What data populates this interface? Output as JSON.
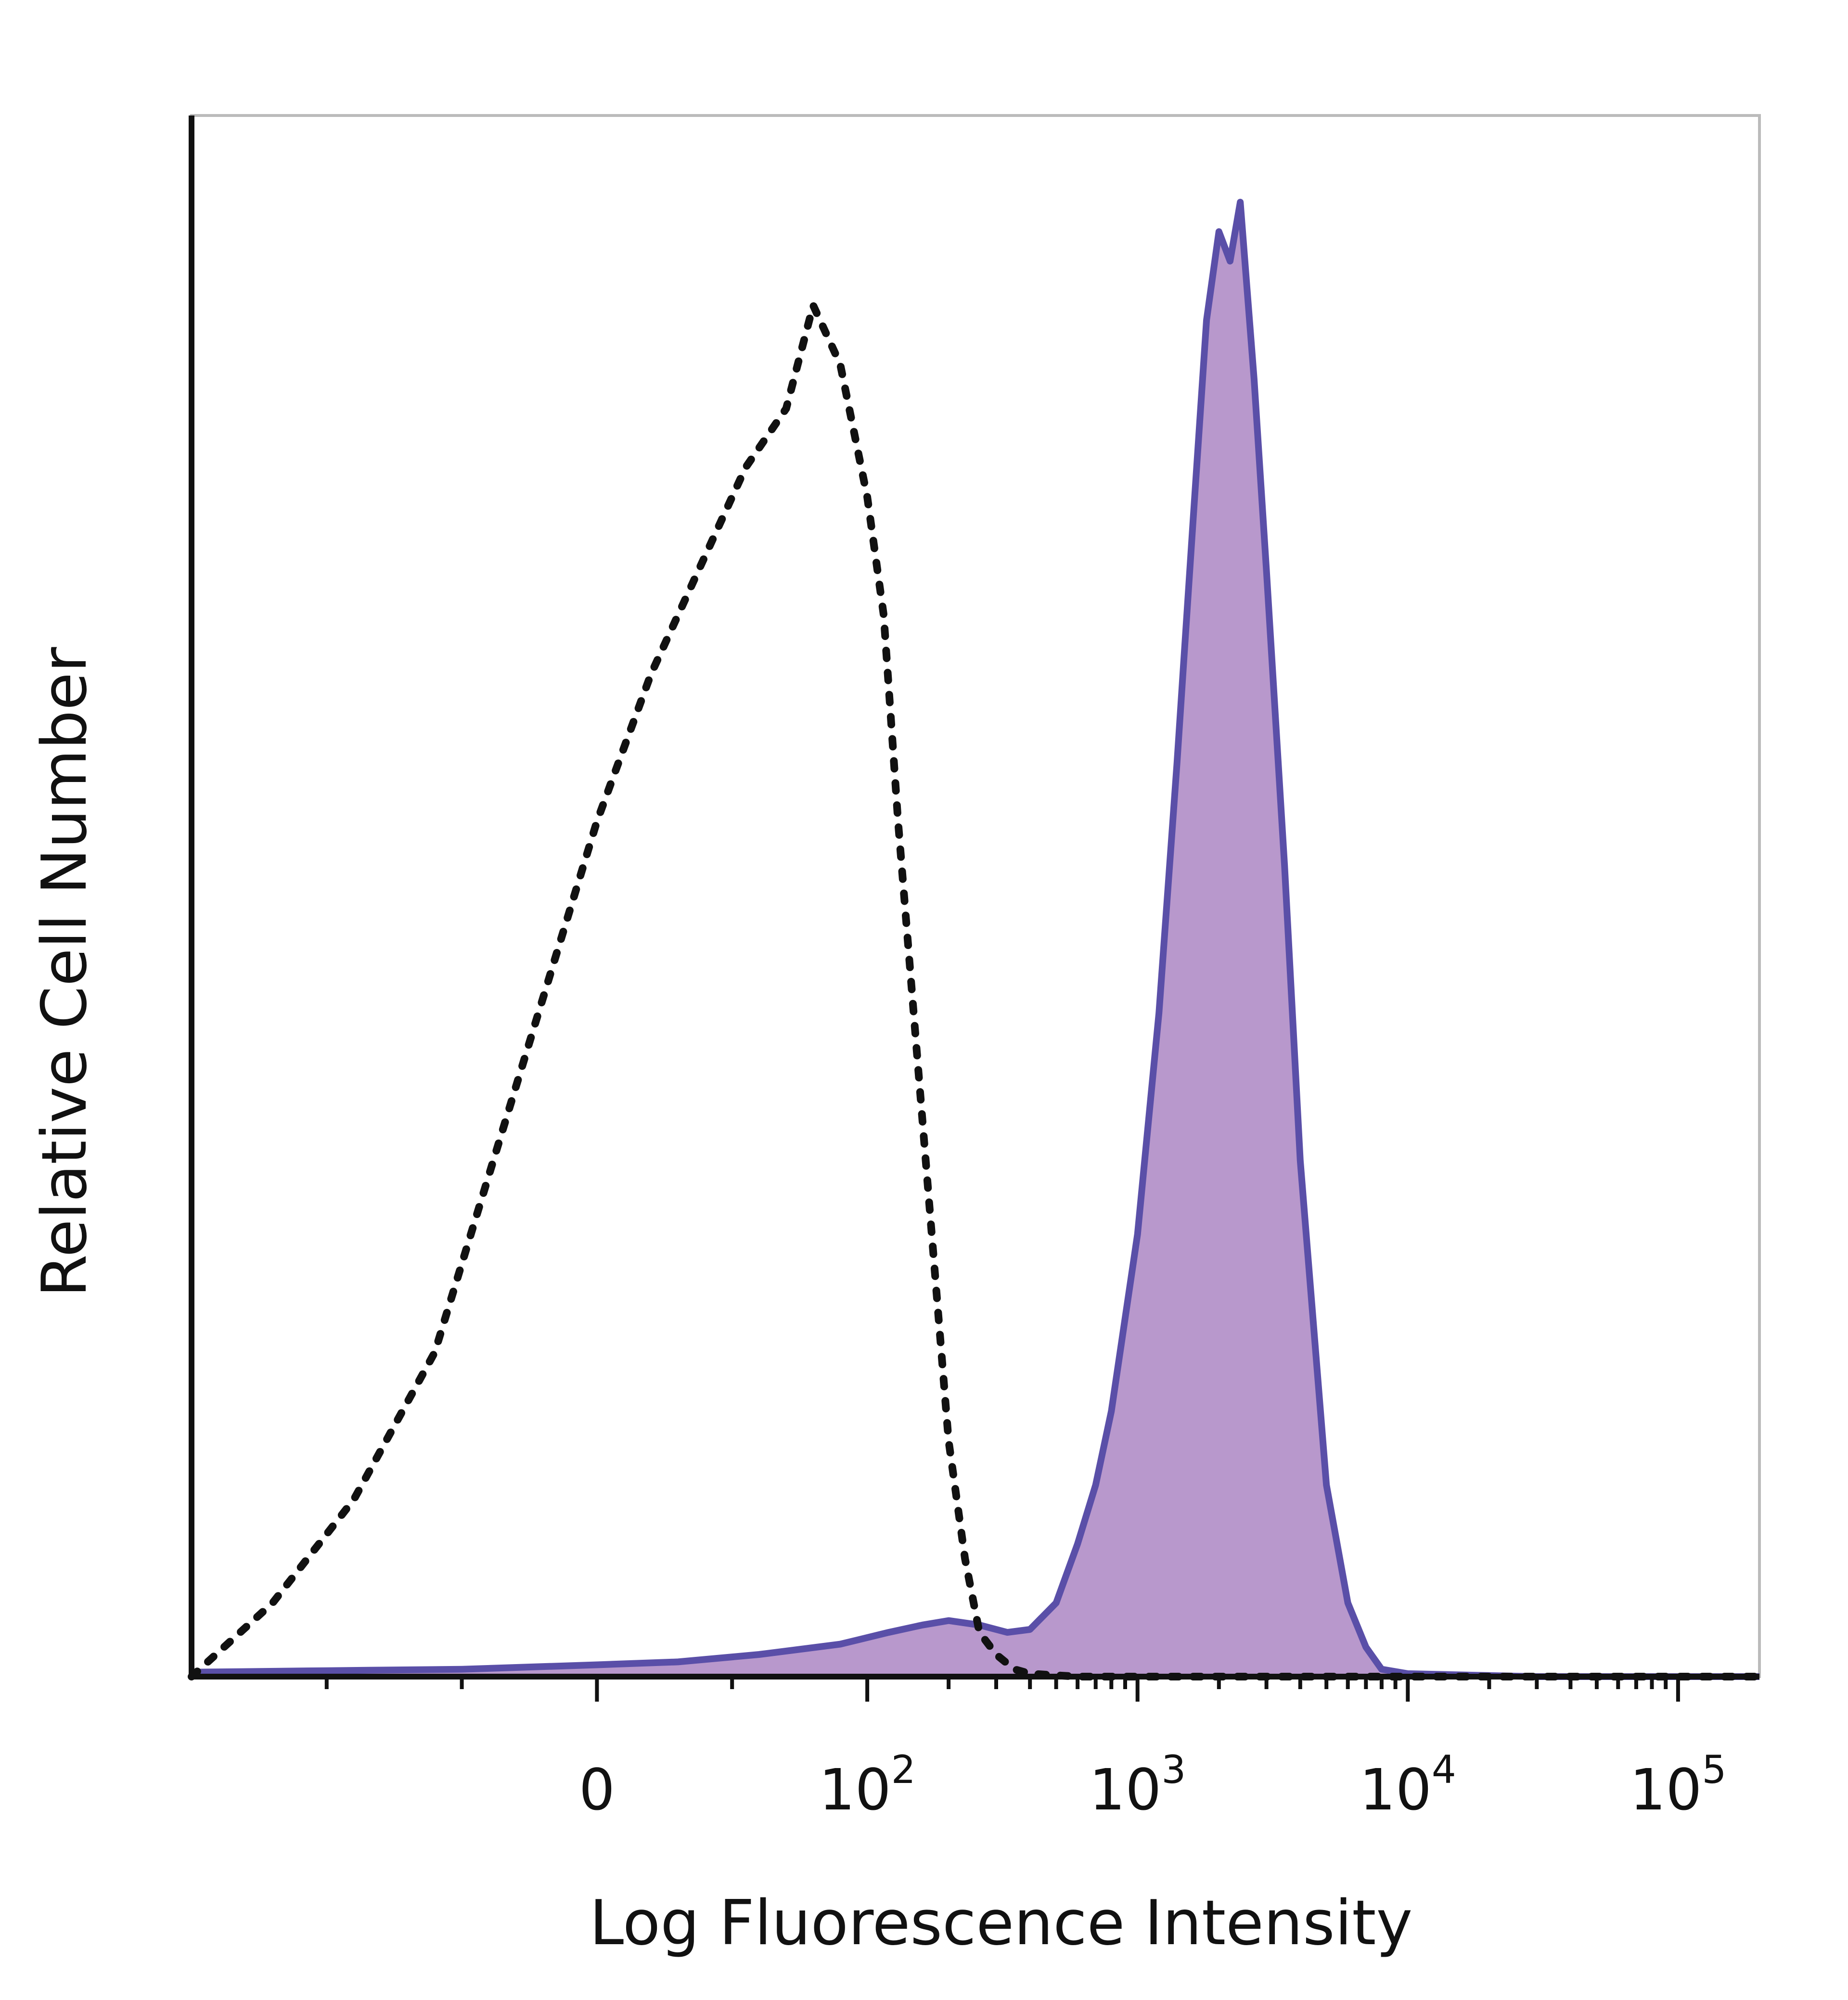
{
  "chart_data": {
    "type": "area",
    "xlabel": "Log Fluorescence Intensity",
    "ylabel": "Relative Cell Number",
    "x_scale": "biexponential (logicle)",
    "x_ticks": [
      {
        "value": 0,
        "base": "0",
        "exp": ""
      },
      {
        "value": 100,
        "base": "10",
        "exp": "2"
      },
      {
        "value": 1000,
        "base": "10",
        "exp": "3"
      },
      {
        "value": 10000,
        "base": "10",
        "exp": "4"
      },
      {
        "value": 100000,
        "base": "10",
        "exp": "5"
      }
    ],
    "xlim": [
      -150,
      200000
    ],
    "ylim": [
      0,
      100
    ],
    "grid": false,
    "colors": {
      "control_line": "#111111",
      "stained_line": "#5a4fa8",
      "stained_fill": "#b898cc",
      "frame": "#bbbbbb",
      "axis": "#111111"
    },
    "series": [
      {
        "style": "dotted-line",
        "x": [
          -150,
          -120,
          -90,
          -60,
          -40,
          -20,
          0,
          20,
          40,
          55,
          70,
          80,
          90,
          100,
          115,
          130,
          150,
          175,
          200,
          230,
          260,
          300,
          350,
          400,
          600,
          1000,
          3000,
          10000,
          100000,
          200000
        ],
        "y": [
          0,
          5,
          12,
          22,
          34,
          46,
          58,
          68,
          76,
          82,
          86,
          93,
          89,
          80,
          72,
          58,
          44,
          29,
          16,
          8,
          3,
          1.5,
          0.5,
          0.2,
          0,
          0,
          0,
          0,
          0,
          0
        ]
      },
      {
        "style": "filled-area",
        "x": [
          -150,
          -100,
          -50,
          0,
          30,
          60,
          90,
          120,
          160,
          200,
          260,
          330,
          400,
          500,
          600,
          700,
          800,
          1000,
          1200,
          1400,
          1600,
          1800,
          2000,
          2200,
          2400,
          2700,
          3000,
          3500,
          4000,
          5000,
          6000,
          7000,
          8000,
          10000,
          30000,
          100000,
          200000
        ],
        "y": [
          0.3,
          0.4,
          0.5,
          0.8,
          1.0,
          1.5,
          2.2,
          3.0,
          3.5,
          3.8,
          3.5,
          3.0,
          3.2,
          5.0,
          9.0,
          13,
          18,
          30,
          45,
          62,
          78,
          92,
          98,
          96,
          100,
          88,
          75,
          55,
          35,
          13,
          5,
          2,
          0.5,
          0.2,
          0,
          0,
          0
        ]
      }
    ]
  }
}
